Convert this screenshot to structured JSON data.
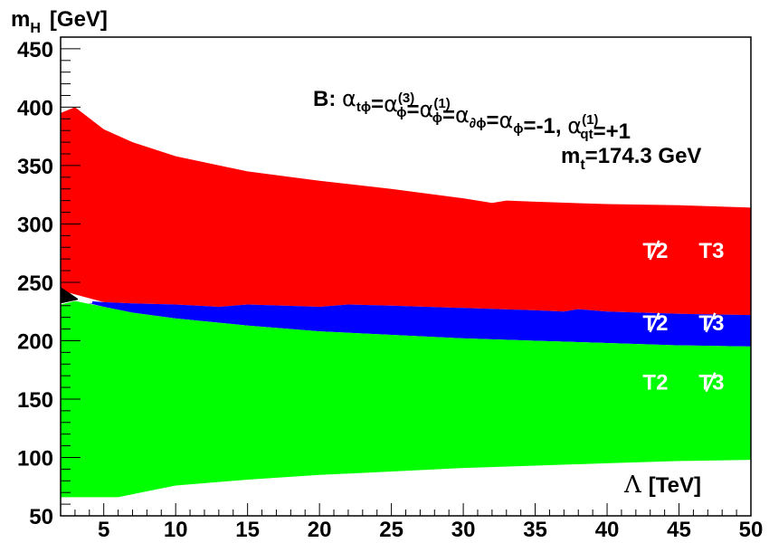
{
  "chart_data": {
    "type": "area",
    "xlabel_symbol": "Λ",
    "xlabel_unit": "[TeV]",
    "ylabel_main": "m",
    "ylabel_sub": "H",
    "ylabel_unit": "[GeV]",
    "xlim": [
      2,
      50
    ],
    "ylim": [
      50,
      460
    ],
    "x_ticks": [
      5,
      10,
      15,
      20,
      25,
      30,
      35,
      40,
      45,
      50
    ],
    "y_ticks": [
      50,
      100,
      150,
      200,
      250,
      300,
      350,
      400,
      450
    ],
    "grid": false,
    "annotation_scenario": {
      "prefix": "B: ",
      "items": [
        {
          "sym": "α",
          "sub": "tϕ",
          "sup": ""
        },
        {
          "sym": "α",
          "sub": "ϕ",
          "sup": "(3)"
        },
        {
          "sym": "α",
          "sub": "ϕ",
          "sup": "(1)"
        },
        {
          "sym": "α",
          "sub": "∂ϕ",
          "sup": ""
        },
        {
          "sym": "α",
          "sub": "ϕ",
          "sup": ""
        }
      ],
      "value_1": "-1",
      "last": {
        "sym": "α",
        "sub": "qt",
        "sup": "(1)"
      },
      "value_2": "+1"
    },
    "annotation_mt": {
      "main": "m",
      "sub": "t",
      "rest": "=174.3 GeV"
    },
    "regions": [
      {
        "color": "#ff0000",
        "label_left": "T2",
        "left_slashed": true,
        "label_right": "T3",
        "right_slashed": false,
        "label_at": [
          46,
          271
        ],
        "upper": [
          [
            2,
            395
          ],
          [
            3,
            400
          ],
          [
            5,
            381
          ],
          [
            7,
            370
          ],
          [
            10,
            358
          ],
          [
            15,
            345
          ],
          [
            20,
            337
          ],
          [
            25,
            330
          ],
          [
            30,
            322
          ],
          [
            32,
            318
          ],
          [
            33,
            320
          ],
          [
            35,
            319
          ],
          [
            40,
            317
          ],
          [
            45,
            316
          ],
          [
            50,
            314
          ]
        ],
        "lower": [
          [
            2,
            243
          ],
          [
            5,
            233
          ],
          [
            7,
            232
          ],
          [
            10,
            231
          ],
          [
            13,
            229
          ],
          [
            15,
            231
          ],
          [
            20,
            229
          ],
          [
            22,
            231
          ],
          [
            25,
            230
          ],
          [
            30,
            228
          ],
          [
            35,
            226
          ],
          [
            37,
            225
          ],
          [
            38,
            227
          ],
          [
            40,
            225
          ],
          [
            45,
            223
          ],
          [
            50,
            222
          ]
        ]
      },
      {
        "color": "#0000ff",
        "label_left": "T2",
        "left_slashed": true,
        "label_right": "T3",
        "right_slashed": true,
        "label_at": [
          46,
          209
        ],
        "upper": [
          [
            4,
            234
          ],
          [
            5,
            233
          ],
          [
            7,
            232
          ],
          [
            10,
            231
          ],
          [
            13,
            229
          ],
          [
            15,
            231
          ],
          [
            20,
            229
          ],
          [
            22,
            231
          ],
          [
            25,
            230
          ],
          [
            30,
            228
          ],
          [
            35,
            226
          ],
          [
            37,
            225
          ],
          [
            38,
            227
          ],
          [
            40,
            225
          ],
          [
            45,
            223
          ],
          [
            50,
            222
          ]
        ],
        "lower": [
          [
            4,
            232
          ],
          [
            5,
            229
          ],
          [
            7,
            224
          ],
          [
            10,
            219
          ],
          [
            15,
            213
          ],
          [
            20,
            208
          ],
          [
            25,
            205
          ],
          [
            30,
            202
          ],
          [
            35,
            200
          ],
          [
            40,
            198
          ],
          [
            45,
            196
          ],
          [
            50,
            195
          ]
        ]
      },
      {
        "color": "#00ff00",
        "label_left": "T2",
        "left_slashed": false,
        "label_right": "T3",
        "right_slashed": true,
        "label_at": [
          46,
          158
        ],
        "upper": [
          [
            2,
            231
          ],
          [
            3,
            234
          ],
          [
            5,
            229
          ],
          [
            7,
            224
          ],
          [
            10,
            219
          ],
          [
            15,
            213
          ],
          [
            20,
            208
          ],
          [
            25,
            205
          ],
          [
            30,
            202
          ],
          [
            35,
            200
          ],
          [
            40,
            198
          ],
          [
            45,
            196
          ],
          [
            50,
            195
          ]
        ],
        "lower": [
          [
            2,
            66
          ],
          [
            4,
            66
          ],
          [
            6,
            66
          ],
          [
            8,
            71
          ],
          [
            10,
            76
          ],
          [
            15,
            81
          ],
          [
            20,
            85
          ],
          [
            25,
            88
          ],
          [
            30,
            91
          ],
          [
            35,
            93
          ],
          [
            40,
            95
          ],
          [
            45,
            97
          ],
          [
            50,
            98
          ]
        ]
      },
      {
        "color": "#000000",
        "label_left": "",
        "left_slashed": false,
        "label_right": "",
        "right_slashed": false,
        "label_at": null,
        "upper": [
          [
            2,
            246
          ],
          [
            3.2,
            236
          ]
        ],
        "lower": [
          [
            2,
            232
          ],
          [
            3.2,
            235
          ]
        ]
      }
    ],
    "white_gap": {
      "color": "#ffffff",
      "from": [
        3.2,
        235.5
      ],
      "to": [
        4.2,
        233
      ]
    }
  }
}
